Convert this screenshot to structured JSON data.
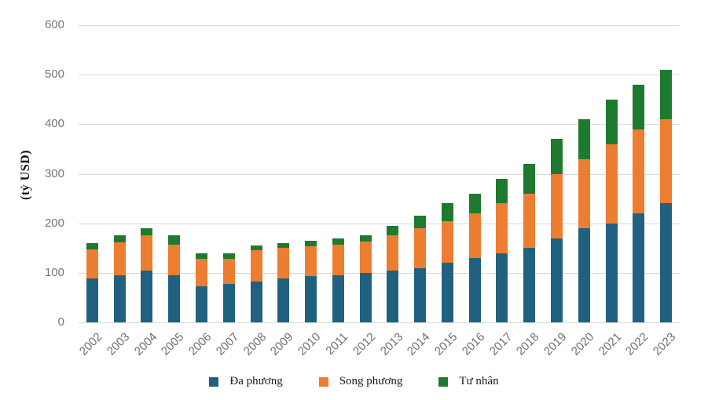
{
  "chart_data": {
    "type": "bar",
    "stacked": true,
    "title": "",
    "ylabel": "(tỷ USD)",
    "xlabel": "",
    "ylim": [
      0,
      600
    ],
    "yticks": [
      0,
      100,
      200,
      300,
      400,
      500,
      600
    ],
    "grid": true,
    "legend_position": "bottom",
    "categories": [
      "2002",
      "2003",
      "2004",
      "2005",
      "2006",
      "2007",
      "2008",
      "2009",
      "2010",
      "2011",
      "2012",
      "2013",
      "2014",
      "2015",
      "2016",
      "2017",
      "2018",
      "2019",
      "2020",
      "2021",
      "2022",
      "2023"
    ],
    "series": [
      {
        "name": "Đa phương",
        "color": "#216180",
        "values": [
          88,
          95,
          105,
          95,
          73,
          78,
          83,
          88,
          93,
          95,
          100,
          105,
          110,
          120,
          130,
          140,
          150,
          170,
          190,
          200,
          220,
          240
        ]
      },
      {
        "name": "Song phương",
        "color": "#ed7d31",
        "values": [
          60,
          67,
          70,
          62,
          55,
          50,
          62,
          62,
          60,
          62,
          63,
          70,
          80,
          85,
          90,
          100,
          110,
          130,
          140,
          160,
          170,
          170
        ]
      },
      {
        "name": "Tư nhân",
        "color": "#1e7a2e",
        "values": [
          12,
          13,
          15,
          18,
          12,
          12,
          10,
          10,
          12,
          13,
          12,
          20,
          25,
          35,
          40,
          50,
          60,
          70,
          80,
          90,
          90,
          100
        ]
      }
    ],
    "totals": [
      160,
      175,
      190,
      175,
      140,
      140,
      155,
      160,
      165,
      170,
      175,
      195,
      215,
      240,
      260,
      290,
      320,
      370,
      410,
      450,
      480,
      510
    ]
  }
}
